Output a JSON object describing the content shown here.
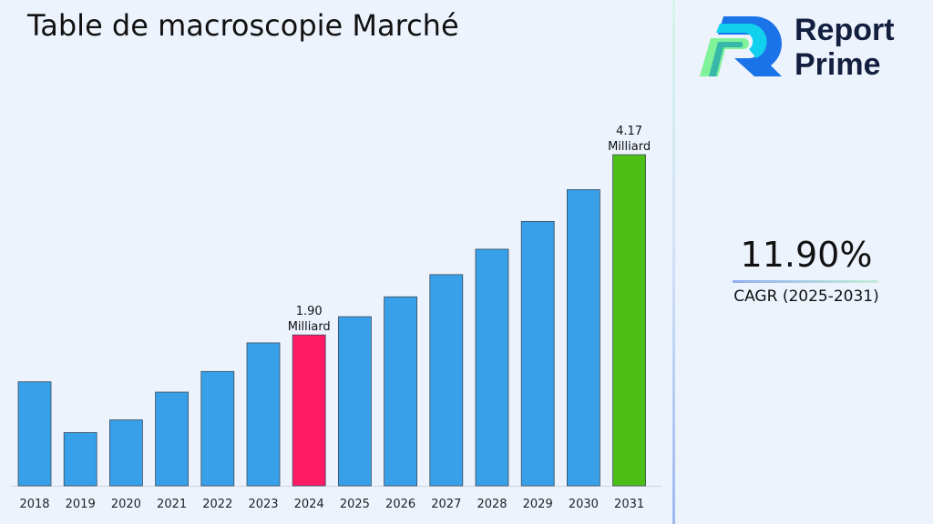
{
  "title": "Table de macroscopie Marché",
  "brand": {
    "line1": "Report",
    "line2": "Prime"
  },
  "cagr": {
    "value": "11.90%",
    "label": "CAGR (2025-2031)"
  },
  "colors": {
    "default": "#37a0e8",
    "highlight_2024": "#ff1a66",
    "highlight_2031": "#4cbf16"
  },
  "chart_data": {
    "type": "bar",
    "title": "",
    "xlabel": "",
    "ylabel": "",
    "ylim": [
      0,
      4.4
    ],
    "grid": false,
    "categories": [
      "2018",
      "2019",
      "2020",
      "2021",
      "2022",
      "2023",
      "2024",
      "2025",
      "2026",
      "2027",
      "2028",
      "2029",
      "2030",
      "2031"
    ],
    "values": [
      1.31,
      0.67,
      0.83,
      1.18,
      1.44,
      1.8,
      1.9,
      2.13,
      2.38,
      2.66,
      2.98,
      3.33,
      3.73,
      4.17
    ],
    "data_labels": {
      "2024": [
        "1.90",
        "Milliard"
      ],
      "2031": [
        "4.17",
        "Milliard"
      ]
    }
  }
}
